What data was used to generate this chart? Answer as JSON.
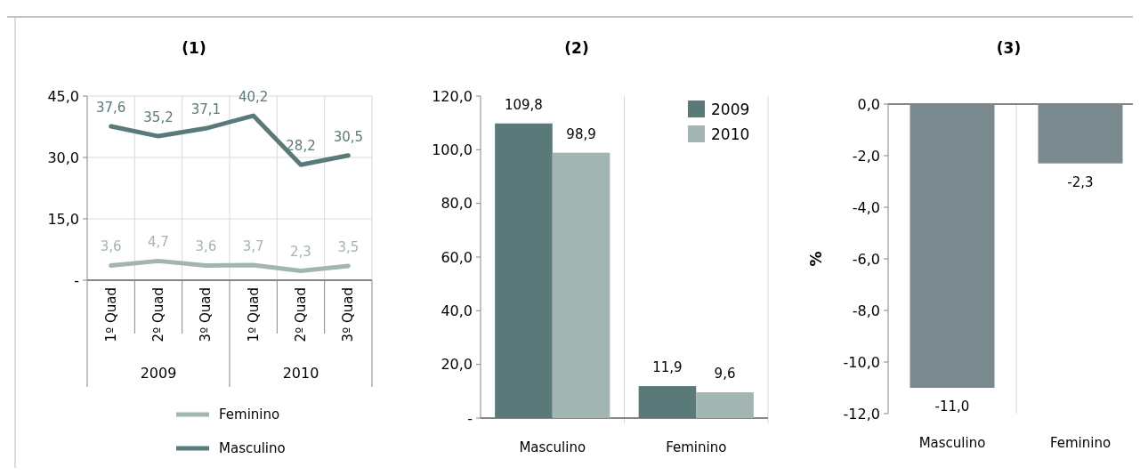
{
  "chart_data": [
    {
      "type": "line",
      "title": "(1)",
      "categories": [
        "1º Quad",
        "2º Quad",
        "3º Quad",
        "1º Quad",
        "2º Quad",
        "3º Quad"
      ],
      "series": [
        {
          "name": "Feminino",
          "color": "#a3b5b2",
          "values": [
            3.6,
            4.7,
            3.6,
            3.7,
            2.3,
            3.5
          ],
          "value_labels": [
            "3,6",
            "4,7",
            "3,6",
            "3,7",
            "2,3",
            "3,5"
          ]
        },
        {
          "name": "Masculino",
          "color": "#5a7a7a",
          "values": [
            37.6,
            35.2,
            37.1,
            40.2,
            28.2,
            30.5
          ],
          "value_labels": [
            "37,6",
            "35,2",
            "37,1",
            "40,2",
            "28,2",
            "30,5"
          ]
        }
      ],
      "ylim": [
        0,
        45
      ],
      "yticks": [
        {
          "value": 0,
          "label": "-"
        },
        {
          "value": 15,
          "label": "15,0"
        },
        {
          "value": 30,
          "label": "30,0"
        },
        {
          "value": 45,
          "label": "45,0"
        }
      ],
      "annotations": [
        "2009",
        "2010"
      ],
      "grid": true,
      "legend": "bottom",
      "marker": "none"
    },
    {
      "type": "bar",
      "title": "(2)",
      "categories": [
        "Masculino",
        "Feminino"
      ],
      "series": [
        {
          "name": "2009",
          "color": "#5a7a7a",
          "values": [
            109.8,
            11.9
          ],
          "value_labels": [
            "109,8",
            "11,9"
          ]
        },
        {
          "name": "2010",
          "color": "#a3b5b2",
          "values": [
            98.9,
            9.6
          ],
          "value_labels": [
            "98,9",
            "9,6"
          ]
        }
      ],
      "ylim": [
        0,
        120
      ],
      "yticks": [
        {
          "value": 0,
          "label": "-"
        },
        {
          "value": 20,
          "label": "20,0"
        },
        {
          "value": 40,
          "label": "40,0"
        },
        {
          "value": 60,
          "label": "60,0"
        },
        {
          "value": 80,
          "label": "80,0"
        },
        {
          "value": 100,
          "label": "100,0"
        },
        {
          "value": 120,
          "label": "120,0"
        }
      ],
      "legend": "top right"
    },
    {
      "type": "bar",
      "title": "(3)",
      "ylabel": "%",
      "categories": [
        "Masculino",
        "Feminino"
      ],
      "color": "#7a8a8f",
      "values": [
        -11.0,
        -2.3
      ],
      "value_labels": [
        "-11,0",
        "-2,3"
      ],
      "ylim": [
        -12,
        0
      ],
      "yticks": [
        {
          "value": -12,
          "label": "-12,0"
        },
        {
          "value": -10,
          "label": "-10,0"
        },
        {
          "value": -8,
          "label": "-8,0"
        },
        {
          "value": -6,
          "label": "-6,0"
        },
        {
          "value": -4,
          "label": "-4,0"
        },
        {
          "value": -2,
          "label": "-2,0"
        },
        {
          "value": 0,
          "label": "0,0"
        }
      ]
    }
  ]
}
